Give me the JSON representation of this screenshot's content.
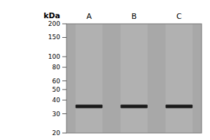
{
  "chart_data": {
    "type": "gel",
    "ylabel": "kDa",
    "categories": [
      "A",
      "B",
      "C"
    ],
    "values": [
      35,
      35,
      35
    ],
    "color": "#1a1a1a",
    "log": "y",
    "ylim": [
      20,
      200
    ],
    "yticks": [
      200,
      150,
      100,
      80,
      60,
      50,
      40,
      30,
      20
    ],
    "grid": false
  }
}
